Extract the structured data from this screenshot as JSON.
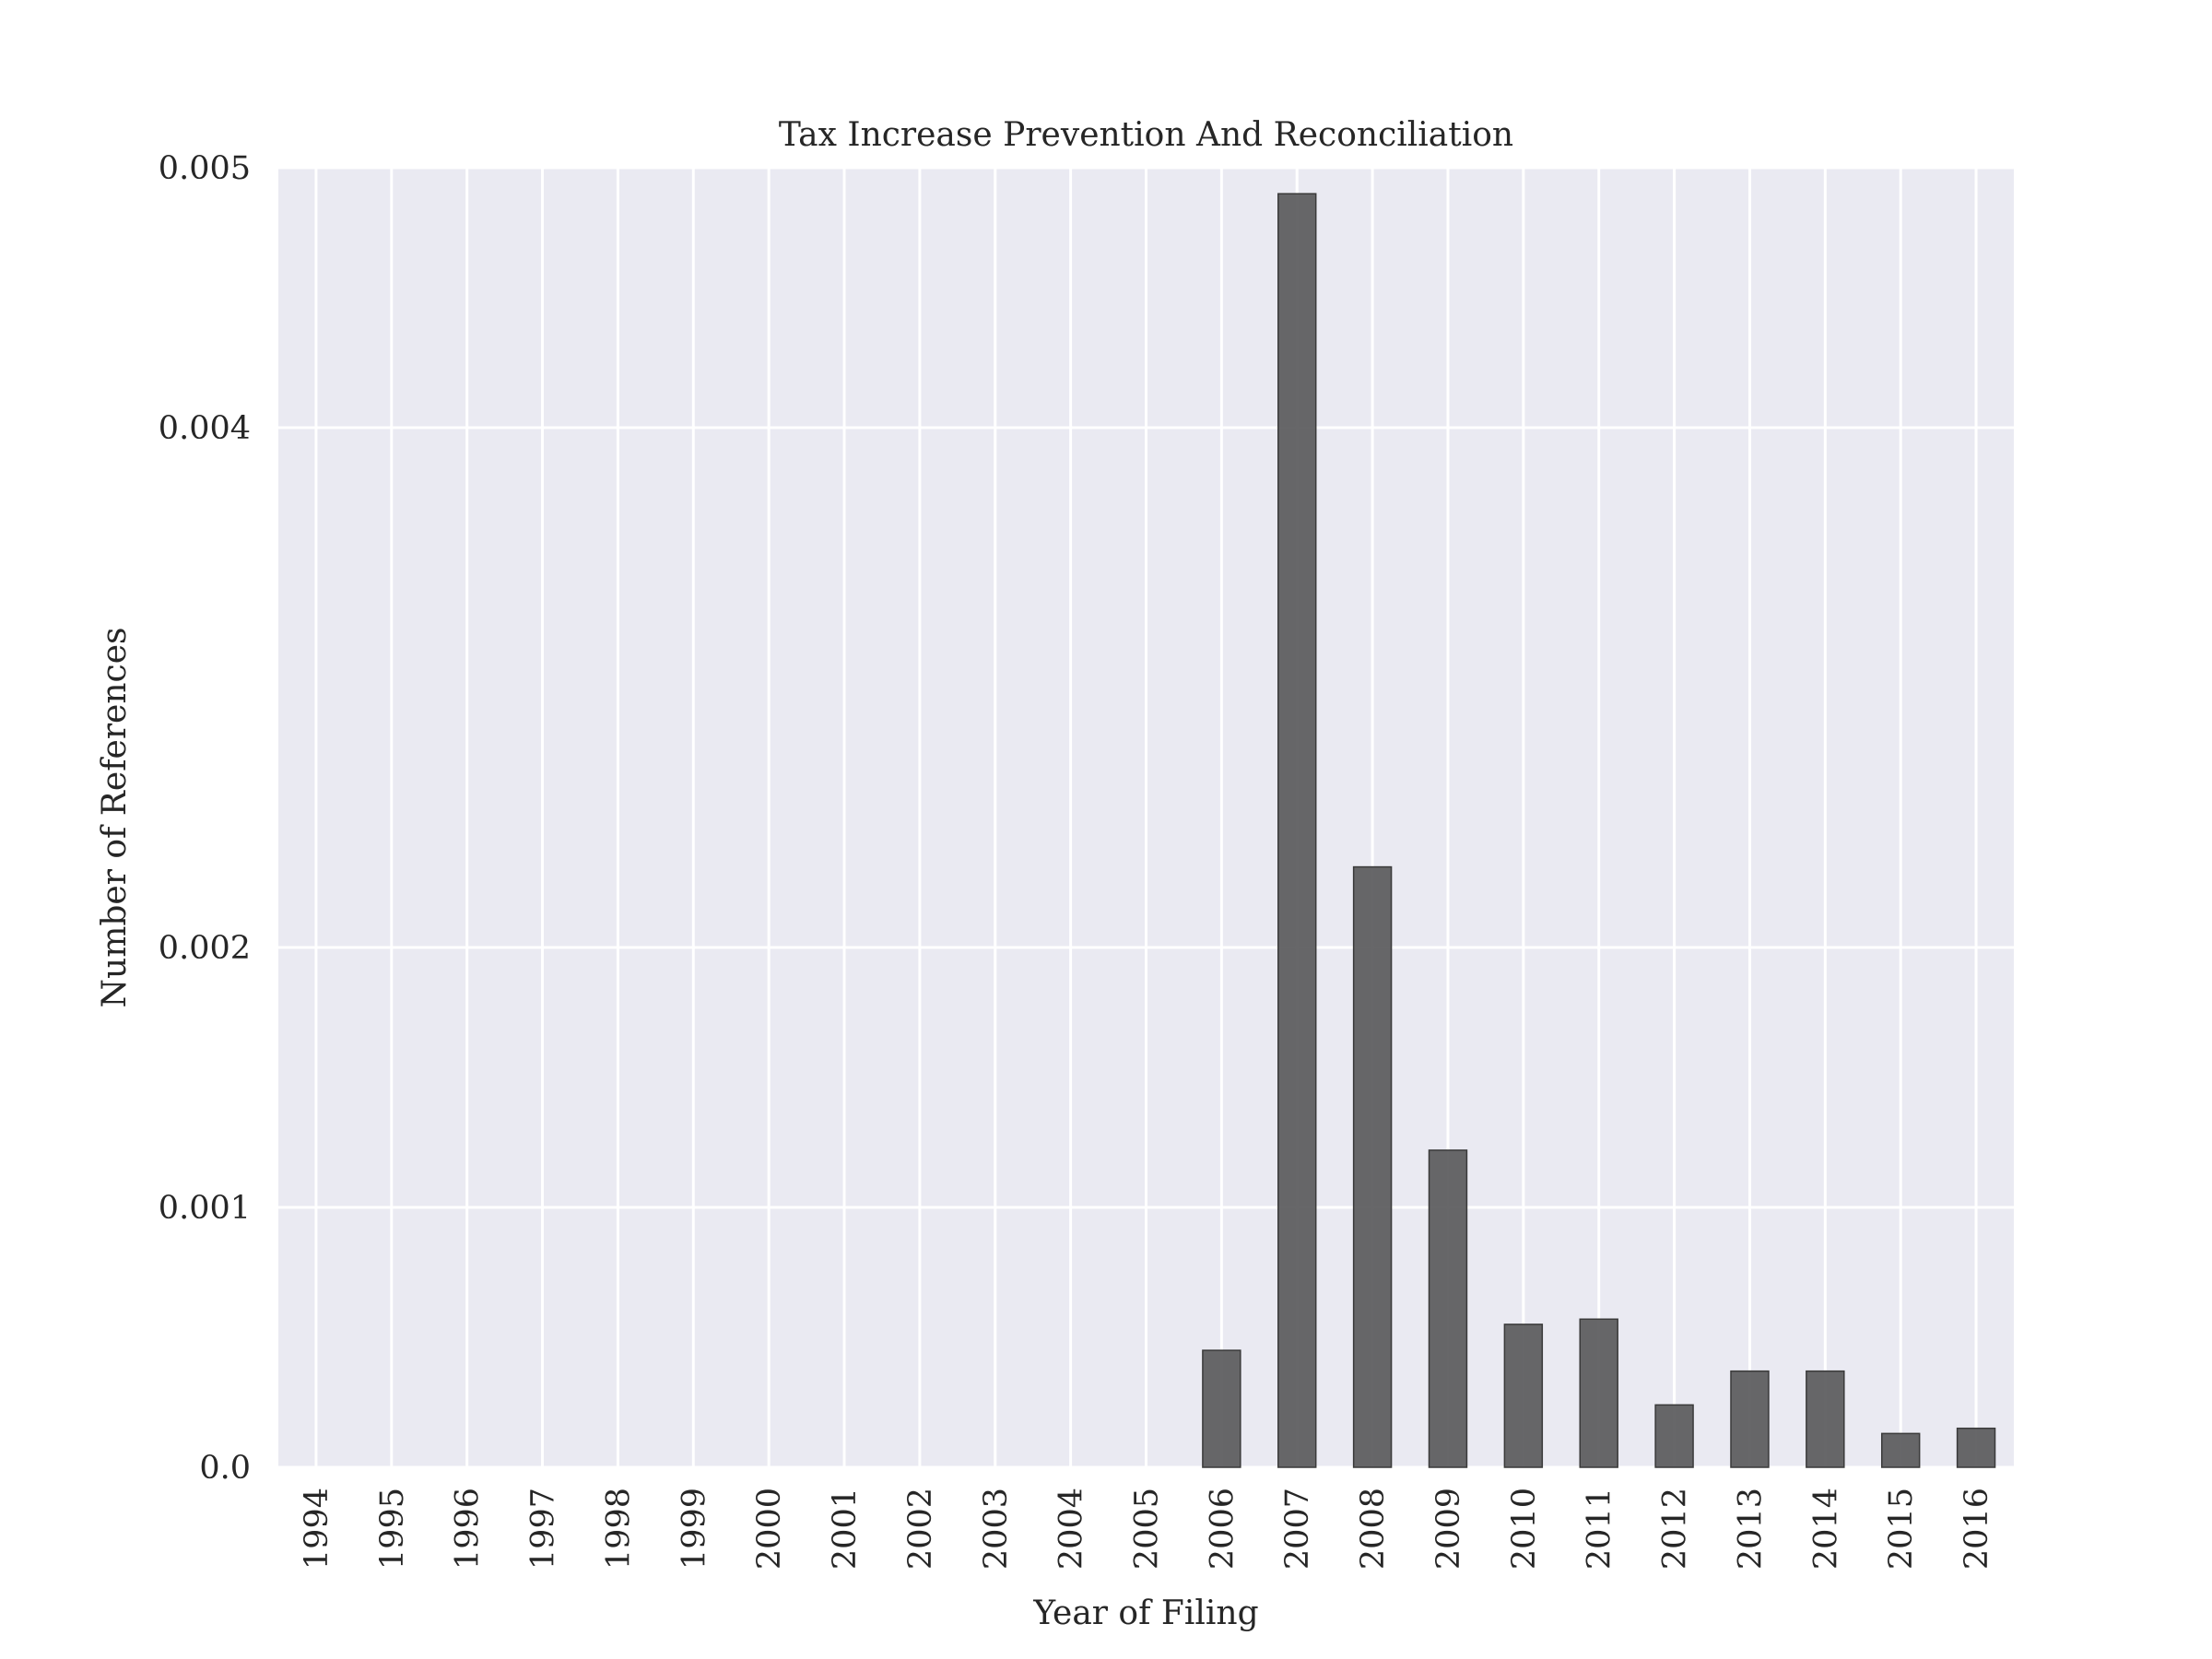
{
  "chart_data": {
    "type": "bar",
    "title": "Tax Increase Prevention And Reconciliation",
    "xlabel": "Year of Filing",
    "ylabel": "Number of References",
    "ylim": [
      0,
      0.005
    ],
    "yticks": [
      {
        "value": 0.0,
        "label": "0.0"
      },
      {
        "value": 0.001,
        "label": "0.001"
      },
      {
        "value": 0.002,
        "label": "0.002"
      },
      {
        "value": 0.004,
        "label": "0.004"
      },
      {
        "value": 0.005,
        "label": "0.005"
      }
    ],
    "grid": true,
    "categories": [
      "1994",
      "1995",
      "1996",
      "1997",
      "1998",
      "1999",
      "2000",
      "2001",
      "2002",
      "2003",
      "2004",
      "2005",
      "2006",
      "2007",
      "2008",
      "2009",
      "2010",
      "2011",
      "2012",
      "2013",
      "2014",
      "2015",
      "2016"
    ],
    "values": [
      0,
      0,
      0,
      0,
      0,
      0,
      0,
      0,
      0,
      0,
      0,
      0,
      0.00045,
      0.0049,
      0.00231,
      0.00122,
      0.00055,
      0.00057,
      0.00024,
      0.00037,
      0.00037,
      0.00013,
      0.00015
    ],
    "colors": {
      "bar": "#5a5a5c",
      "bar_edge": "#3a3a3a",
      "plot_bg": "#eaeaf2",
      "grid": "#ffffff",
      "text": "#262626"
    }
  }
}
